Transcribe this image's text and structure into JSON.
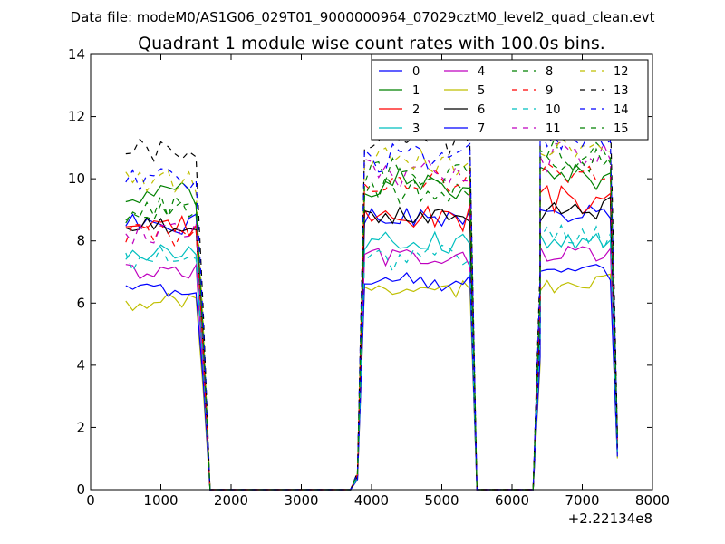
{
  "chart_data": {
    "type": "line",
    "suptitle": "Data file: modeM0/AS1G06_029T01_9000000964_07029cztM0_level2_quad_clean.evt",
    "title": "Quadrant 1 module wise count rates with 100.0s bins.",
    "xlabel": "",
    "ylabel": "",
    "x_offset_label": "+2.22134e8",
    "xlim": [
      0,
      8000
    ],
    "ylim": [
      0,
      14
    ],
    "x_ticks": [
      0,
      1000,
      2000,
      3000,
      4000,
      5000,
      6000,
      7000,
      8000
    ],
    "y_ticks": [
      0,
      2,
      4,
      6,
      8,
      10,
      12,
      14
    ],
    "x_tick_labels": [
      "0",
      "1000",
      "2000",
      "3000",
      "4000",
      "5000",
      "6000",
      "7000",
      "8000"
    ],
    "y_tick_labels": [
      "0",
      "2",
      "4",
      "6",
      "8",
      "10",
      "12",
      "14"
    ],
    "legend_position": "top-right",
    "legend_columns": 4,
    "grid": false,
    "series": [
      {
        "name": "0",
        "color": "#0000ff",
        "dashed": false,
        "seed": 1,
        "levels": [
          8.5,
          8.7,
          8.8
        ],
        "sigma": 0.3
      },
      {
        "name": "1",
        "color": "#008000",
        "dashed": false,
        "seed": 2,
        "levels": [
          9.5,
          9.9,
          10.1
        ],
        "sigma": 0.4
      },
      {
        "name": "2",
        "color": "#ff0000",
        "dashed": false,
        "seed": 3,
        "levels": [
          8.5,
          8.8,
          9.3
        ],
        "sigma": 0.35
      },
      {
        "name": "3",
        "color": "#00bfbf",
        "dashed": false,
        "seed": 4,
        "levels": [
          7.6,
          8.0,
          8.0
        ],
        "sigma": 0.3
      },
      {
        "name": "4",
        "color": "#bf00bf",
        "dashed": false,
        "seed": 5,
        "levels": [
          7.0,
          7.4,
          7.6
        ],
        "sigma": 0.3
      },
      {
        "name": "5",
        "color": "#bfbf00",
        "dashed": false,
        "seed": 6,
        "levels": [
          6.0,
          6.5,
          6.7
        ],
        "sigma": 0.25
      },
      {
        "name": "6",
        "color": "#000000",
        "dashed": false,
        "seed": 7,
        "levels": [
          8.5,
          8.8,
          9.0
        ],
        "sigma": 0.3
      },
      {
        "name": "7",
        "color": "#0000ff",
        "dashed": false,
        "seed": 8,
        "levels": [
          6.5,
          6.6,
          7.1
        ],
        "sigma": 0.3
      },
      {
        "name": "8",
        "color": "#008000",
        "dashed": true,
        "seed": 9,
        "levels": [
          8.8,
          9.6,
          10.8
        ],
        "sigma": 0.4
      },
      {
        "name": "9",
        "color": "#ff0000",
        "dashed": true,
        "seed": 10,
        "levels": [
          8.3,
          9.8,
          10.2
        ],
        "sigma": 0.4
      },
      {
        "name": "10",
        "color": "#00bfbf",
        "dashed": true,
        "seed": 11,
        "levels": [
          7.4,
          7.5,
          8.2
        ],
        "sigma": 0.35
      },
      {
        "name": "11",
        "color": "#bf00bf",
        "dashed": true,
        "seed": 12,
        "levels": [
          8.2,
          10.2,
          10.8
        ],
        "sigma": 0.4
      },
      {
        "name": "12",
        "color": "#bfbf00",
        "dashed": true,
        "seed": 13,
        "levels": [
          10.0,
          10.6,
          10.9
        ],
        "sigma": 0.4
      },
      {
        "name": "13",
        "color": "#000000",
        "dashed": true,
        "seed": 14,
        "levels": [
          10.8,
          11.3,
          12.0
        ],
        "sigma": 0.4
      },
      {
        "name": "14",
        "color": "#0000ff",
        "dashed": true,
        "seed": 15,
        "levels": [
          10.1,
          10.7,
          11.3
        ],
        "sigma": 0.4
      },
      {
        "name": "15",
        "color": "#008000",
        "dashed": true,
        "seed": 16,
        "levels": [
          9.0,
          10.2,
          10.6
        ],
        "sigma": 0.4
      }
    ],
    "time_bins": {
      "segment_1": {
        "start": 500,
        "end": 1500,
        "step": 100
      },
      "segment_2": {
        "start": 3900,
        "end": 5400,
        "step": 100
      },
      "segment_3": {
        "start": 6400,
        "end": 7400,
        "step": 100
      },
      "transitions": [
        {
          "x": 1600,
          "fraction": 0.55
        },
        {
          "x": 1700,
          "fraction": 0.0
        },
        {
          "x": 3700,
          "fraction": 0.0
        },
        {
          "x": 3800,
          "fraction": 0.05
        },
        {
          "x": 5500,
          "fraction": 0.0
        },
        {
          "x": 6300,
          "fraction": 0.0
        },
        {
          "x": 6400,
          "fraction": 0.6
        },
        {
          "x": 7500,
          "fraction": 0.15
        }
      ]
    }
  }
}
